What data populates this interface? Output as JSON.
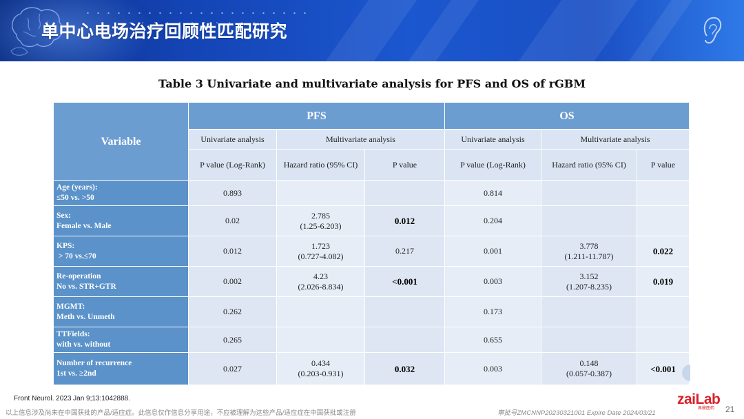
{
  "header": {
    "title": "单中心电场治疗回顾性匹配研究",
    "bg_color": "#1b57cf",
    "left_graphic": "brain-outline-icon",
    "right_graphic": "ear-icon"
  },
  "table": {
    "caption": "Table 3 Univariate and multivariate analysis for PFS and OS of rGBM",
    "variable_header": "Variable",
    "groups": [
      "PFS",
      "OS"
    ],
    "subgroups": [
      "Univariate analysis",
      "Multivariate analysis",
      "Univariate analysis",
      "Multivariate analysis"
    ],
    "columns": [
      "P value (Log-Rank)",
      "Hazard ratio (95% CI)",
      "P value",
      "P value (Log-Rank)",
      "Hazard ratio (95% CI)",
      "P value"
    ],
    "rows": [
      {
        "label1": "Age (years):",
        "label2": "≤50 vs. >50",
        "cells": [
          {
            "t1": "0.893",
            "t2": ""
          },
          {
            "t1": "",
            "t2": ""
          },
          {
            "t1": "",
            "t2": ""
          },
          {
            "t1": "0.814",
            "t2": ""
          },
          {
            "t1": "",
            "t2": ""
          },
          {
            "t1": "",
            "t2": ""
          }
        ]
      },
      {
        "label1": "Sex:",
        "label2": "Female vs. Male",
        "cells": [
          {
            "t1": "0.02",
            "t2": ""
          },
          {
            "t1": "2.785",
            "t2": "(1.25-6.203)"
          },
          {
            "t1": "0.012",
            "t2": ""
          },
          {
            "t1": "0.204",
            "t2": ""
          },
          {
            "t1": "",
            "t2": ""
          },
          {
            "t1": "",
            "t2": ""
          }
        ]
      },
      {
        "label1": "KPS:",
        "label2": " > 70 vs.≤70",
        "cells": [
          {
            "t1": "0.012",
            "t2": ""
          },
          {
            "t1": "1.723",
            "t2": "(0.727-4.082)"
          },
          {
            "t1": "0.217",
            "t2": ""
          },
          {
            "t1": "0.001",
            "t2": ""
          },
          {
            "t1": "3.778",
            "t2": "(1.211-11.787)"
          },
          {
            "t1": "0.022",
            "t2": ""
          }
        ]
      },
      {
        "label1": "Re-operation",
        "label2": "No vs. STR+GTR",
        "cells": [
          {
            "t1": "0.002",
            "t2": ""
          },
          {
            "t1": "4.23",
            "t2": "(2.026-8.834)"
          },
          {
            "t1": "<0.001",
            "t2": ""
          },
          {
            "t1": "0.003",
            "t2": ""
          },
          {
            "t1": "3.152",
            "t2": "(1.207-8.235)"
          },
          {
            "t1": "0.019",
            "t2": ""
          }
        ]
      },
      {
        "label1": "MGMT:",
        "label2": "Meth vs. Unmeth",
        "cells": [
          {
            "t1": "0.262",
            "t2": ""
          },
          {
            "t1": "",
            "t2": ""
          },
          {
            "t1": "",
            "t2": ""
          },
          {
            "t1": "0.173",
            "t2": ""
          },
          {
            "t1": "",
            "t2": ""
          },
          {
            "t1": "",
            "t2": ""
          }
        ]
      },
      {
        "label1": "TTFields:",
        "label2": "with vs. without",
        "cells": [
          {
            "t1": "0.265",
            "t2": ""
          },
          {
            "t1": "",
            "t2": ""
          },
          {
            "t1": "",
            "t2": ""
          },
          {
            "t1": "0.655",
            "t2": ""
          },
          {
            "t1": "",
            "t2": ""
          },
          {
            "t1": "",
            "t2": ""
          }
        ]
      },
      {
        "label1": "Number of recurrence",
        "label2": "1st vs. ≥2nd",
        "cells": [
          {
            "t1": "0.027",
            "t2": ""
          },
          {
            "t1": "0.434",
            "t2": "(0.203-0.931)"
          },
          {
            "t1": "0.032",
            "t2": ""
          },
          {
            "t1": "0.003",
            "t2": ""
          },
          {
            "t1": "0.148",
            "t2": "(0.057-0.387)"
          },
          {
            "t1": "<0.001",
            "t2": ""
          }
        ]
      }
    ]
  },
  "footer": {
    "reference": "Front Neurol. 2023 Jan 9;13:1042888.",
    "disclaimer": "以上信息涉及尚未在中国获批的产品/适应症。此信息仅作信息分享用途，不应被理解为这些产品/适应症在中国获批或注册",
    "approval": "审批号ZMCNNP20230321001 Expire Date 2024/03/21",
    "logo_text": "zaiLab",
    "logo_subtext": "再鼎医药",
    "page_number": "21",
    "brand_color": "#d8232a"
  }
}
